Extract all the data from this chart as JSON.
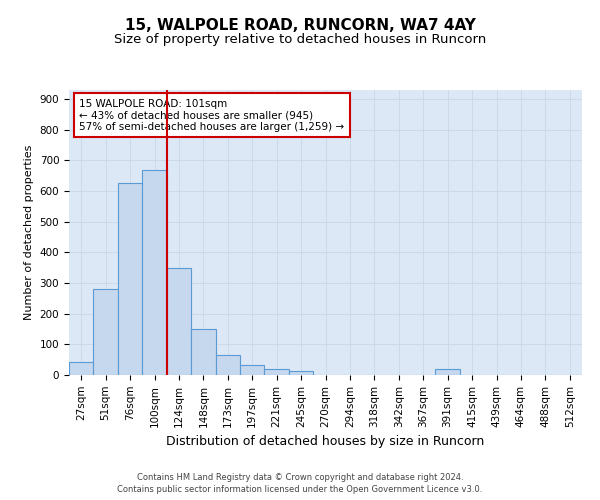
{
  "title1": "15, WALPOLE ROAD, RUNCORN, WA7 4AY",
  "title2": "Size of property relative to detached houses in Runcorn",
  "xlabel": "Distribution of detached houses by size in Runcorn",
  "ylabel": "Number of detached properties",
  "categories": [
    "27sqm",
    "51sqm",
    "76sqm",
    "100sqm",
    "124sqm",
    "148sqm",
    "173sqm",
    "197sqm",
    "221sqm",
    "245sqm",
    "270sqm",
    "294sqm",
    "318sqm",
    "342sqm",
    "367sqm",
    "391sqm",
    "415sqm",
    "439sqm",
    "464sqm",
    "488sqm",
    "512sqm"
  ],
  "values": [
    44,
    280,
    625,
    670,
    348,
    150,
    65,
    32,
    20,
    12,
    0,
    0,
    0,
    0,
    0,
    18,
    0,
    0,
    0,
    0,
    0
  ],
  "bar_color": "#c5d8ee",
  "bar_edge_color": "#5b9bd5",
  "vline_index": 3,
  "annotation_text": "15 WALPOLE ROAD: 101sqm\n← 43% of detached houses are smaller (945)\n57% of semi-detached houses are larger (1,259) →",
  "annotation_box_color": "#ffffff",
  "annotation_box_edge": "#cc0000",
  "vline_color": "#cc0000",
  "ylim": [
    0,
    930
  ],
  "yticks": [
    0,
    100,
    200,
    300,
    400,
    500,
    600,
    700,
    800,
    900
  ],
  "grid_color": "#c8d8e8",
  "bg_color": "#dce8f5",
  "footer1": "Contains HM Land Registry data © Crown copyright and database right 2024.",
  "footer2": "Contains public sector information licensed under the Open Government Licence v3.0.",
  "title_fontsize": 11,
  "subtitle_fontsize": 9.5,
  "ylabel_fontsize": 8,
  "xlabel_fontsize": 9,
  "tick_fontsize": 7.5,
  "footer_fontsize": 6,
  "annot_fontsize": 7.5
}
